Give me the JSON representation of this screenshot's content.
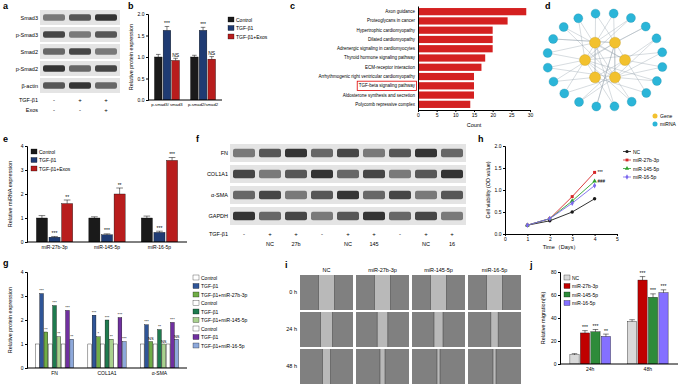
{
  "chart_data": [
    {
      "label": "b",
      "type": "bar",
      "y_label": "Relative protein expression",
      "categories": [
        "p-smad3/ smad3",
        "p-smad2/smad2"
      ],
      "series": [
        {
          "name": "Control",
          "color": "#1a1a1a",
          "values": [
            1.0,
            1.0
          ],
          "errors": [
            0.06,
            0.04
          ]
        },
        {
          "name": "TGF-β1",
          "color": "#1f3b73",
          "values": [
            1.62,
            1.62
          ],
          "errors": [
            0.09,
            0.07
          ],
          "annotations": [
            "***",
            "***"
          ]
        },
        {
          "name": "TGF-β1+Exos",
          "color": "#b81d1d",
          "values": [
            0.92,
            0.95
          ],
          "errors": [
            0.05,
            0.06
          ],
          "annotations": [
            "NS",
            "NS"
          ]
        }
      ],
      "ylim": [
        0,
        2
      ],
      "yticks": [
        {
          "value": 0,
          "label": "0.0"
        },
        0.5,
        {
          "value": 1,
          "label": "1.0"
        },
        1.5,
        {
          "value": 2,
          "label": "2.0"
        }
      ],
      "legend": "right"
    },
    {
      "label": "c",
      "type": "bar",
      "orientation": "horizontal",
      "x_label": "Count",
      "categories": [
        "Axon guidance",
        "Proteoglycans in cancer",
        "Hypertrophic cardiomyopathy",
        "Dilated cardiomyopathy",
        "Adrenergic signaling in cardiomyocytes",
        "Thyroid hormone signaling pathway",
        "ECM-receptor interaction",
        "Arrhythmogenic right ventricular cardiomyopathy",
        "TGF-beta signaling pathway",
        "Aldosterone synthesis and secretion",
        "Polycomb repressive complex"
      ],
      "values": [
        29,
        24,
        20,
        20,
        20,
        18,
        17,
        15,
        15,
        15,
        14
      ],
      "color": "#d42020",
      "highlight": "TGF-beta signaling pathway",
      "xlim": [
        0,
        30
      ],
      "xticks": [
        0,
        5,
        10,
        15,
        20,
        25,
        30
      ]
    },
    {
      "label": "e",
      "type": "bar",
      "y_label": "Relative miRNA expression",
      "categories": [
        "miR-27b-3p",
        "miR-145-5p",
        "miR-16-5p"
      ],
      "series": [
        {
          "name": "Control",
          "color": "#1a1a1a",
          "values": [
            1.0,
            1.0,
            1.0
          ],
          "errors": [
            0.1,
            0.05,
            0.08
          ]
        },
        {
          "name": "TGF-β1",
          "color": "#1f3b73",
          "values": [
            0.2,
            0.3,
            0.4
          ],
          "errors": [
            0.03,
            0.04,
            0.05
          ],
          "annotations": [
            "***",
            "***",
            "***"
          ]
        },
        {
          "name": "TGF-β1+Exos",
          "color": "#b81d1d",
          "values": [
            1.6,
            2.0,
            3.4
          ],
          "errors": [
            0.15,
            0.25,
            0.12
          ],
          "annotations": [
            "**",
            "**",
            "***"
          ]
        }
      ],
      "ylim": [
        0,
        4
      ],
      "yticks": [
        0,
        1,
        2,
        3,
        4
      ],
      "legend": "upper left"
    },
    {
      "label": "g",
      "type": "bar",
      "y_label": "Relative protein expression",
      "categories": [
        "FN",
        "COL1A1",
        "α-SMA"
      ],
      "series": [
        {
          "name": "Control",
          "color": "#ffffff",
          "values": [
            1.0,
            1.0,
            1.0
          ]
        },
        {
          "name": "TGF-β1",
          "color": "#2f5597",
          "values": [
            3.1,
            2.2,
            1.8
          ],
          "annotations": [
            "***",
            "***",
            "***"
          ]
        },
        {
          "name": "TGF-β1+miR-27b-3p",
          "color": "#70ad47",
          "values": [
            1.5,
            1.3,
            1.1
          ],
          "annotations": [
            "**",
            "*",
            "NS"
          ]
        },
        {
          "name": "Control",
          "color": "#ffffff",
          "values": [
            1.0,
            1.0,
            1.0
          ]
        },
        {
          "name": "TGF-β1",
          "color": "#1e7b4f",
          "values": [
            2.6,
            2.0,
            1.6
          ],
          "annotations": [
            "***",
            "***",
            "**"
          ]
        },
        {
          "name": "TGF-β1+miR-145-5p",
          "color": "#a9d18e",
          "values": [
            1.3,
            1.2,
            1.0
          ],
          "annotations": [
            "**",
            "**",
            "NS"
          ]
        },
        {
          "name": "Control",
          "color": "#ffffff",
          "values": [
            1.0,
            1.0,
            1.0
          ]
        },
        {
          "name": "TGF-β1",
          "color": "#7030a0",
          "values": [
            2.4,
            2.1,
            1.9
          ],
          "annotations": [
            "***",
            "***",
            "***"
          ]
        },
        {
          "name": "TGF-β1+miR-16-5p",
          "color": "#8ea9db",
          "values": [
            1.2,
            1.1,
            1.2
          ],
          "annotations": [
            "**",
            "***",
            "NS"
          ]
        }
      ],
      "ylim": [
        0,
        4
      ],
      "yticks": [
        0,
        1,
        2,
        3,
        4
      ],
      "legend": "right"
    },
    {
      "label": "h",
      "type": "line",
      "x_label": "Time（Days）",
      "y_label": "Cell viability (OD value)",
      "x": [
        1,
        2,
        3,
        4
      ],
      "series": [
        {
          "name": "NC",
          "color": "#1a1a1a",
          "marker": "circle",
          "line_style": "solid",
          "values": [
            0.2,
            0.3,
            0.5,
            0.8
          ]
        },
        {
          "name": "miR-27b-3p",
          "color": "#d62728",
          "marker": "square",
          "line_style": "solid",
          "values": [
            0.2,
            0.35,
            0.85,
            1.4
          ],
          "annotations": [
            null,
            null,
            null,
            "***"
          ]
        },
        {
          "name": "miR-145-5p",
          "color": "#2ca02c",
          "marker": "triangle",
          "line_style": "solid",
          "values": [
            0.2,
            0.35,
            0.75,
            1.2
          ],
          "annotations": [
            null,
            null,
            null,
            "###"
          ]
        },
        {
          "name": "miR-16-5p",
          "color": "#7b68ee",
          "marker": "diamond",
          "line_style": "solid",
          "values": [
            0.2,
            0.35,
            0.7,
            1.1
          ]
        }
      ],
      "xlim": [
        0,
        5
      ],
      "xticks": [
        0,
        1,
        2,
        3,
        4,
        5
      ],
      "ylim": [
        0,
        2
      ],
      "yticks": [
        {
          "value": 0,
          "label": "0.0"
        },
        0.5,
        {
          "value": 1,
          "label": "1.0"
        },
        1.5,
        {
          "value": 2,
          "label": "2.0"
        }
      ],
      "legend": "right"
    },
    {
      "label": "j",
      "type": "bar",
      "y_label": "Relative migration(%)",
      "categories": [
        "24h",
        "48h"
      ],
      "series": [
        {
          "name": "NC",
          "color": "#d9d9d9",
          "values": [
            8,
            37
          ],
          "errors": [
            1,
            1.5
          ]
        },
        {
          "name": "miR-27b-3p",
          "color": "#c00000",
          "values": [
            27,
            73
          ],
          "errors": [
            2,
            3
          ],
          "annotations": [
            "***",
            "***"
          ]
        },
        {
          "name": "miR-145-5p",
          "color": "#2e8b3a",
          "values": [
            28,
            58
          ],
          "errors": [
            2,
            3
          ],
          "annotations": [
            "***",
            "***"
          ]
        },
        {
          "name": "miR-16-5p",
          "color": "#8470ff",
          "values": [
            24,
            62
          ],
          "errors": [
            2,
            2.5
          ],
          "annotations": [
            "**",
            "***"
          ]
        }
      ],
      "ylim": [
        0,
        80
      ],
      "yticks": [
        0,
        20,
        40,
        60,
        80
      ],
      "legend": "upper left"
    }
  ],
  "blot_a": {
    "label": "a",
    "rows": [
      "Smad3",
      "p-Smad3",
      "Smad2",
      "p-Smad2",
      "β-actin"
    ],
    "conditions": [
      {
        "name": "TGF-β1",
        "marks": [
          "-",
          "+",
          "+"
        ]
      },
      {
        "name": "Exos",
        "marks": [
          "-",
          "-",
          "+"
        ]
      }
    ]
  },
  "network": {
    "label": "d",
    "node_types": [
      {
        "name": "Gene",
        "color": "#f2c12e"
      },
      {
        "name": "miRNA",
        "color": "#2bb5d8"
      }
    ]
  },
  "blot_f": {
    "label": "f",
    "rows": [
      "FN",
      "COL1A1",
      "α-SMA",
      "GAPDH"
    ],
    "conditions": [
      {
        "name": "TGF-β1",
        "marks": [
          "-",
          "+",
          "+",
          "-",
          "+",
          "+",
          "-",
          "+",
          "+"
        ]
      }
    ],
    "lanes": [
      null,
      "NC",
      "27b",
      null,
      "NC",
      "145",
      null,
      "NC",
      "16"
    ]
  },
  "wound": {
    "label": "i",
    "columns": [
      "NC",
      "miR-27b-3p",
      "miR-145-5p",
      "miR-16-5p"
    ],
    "rows": [
      "0 h",
      "24 h",
      "48 h"
    ]
  }
}
